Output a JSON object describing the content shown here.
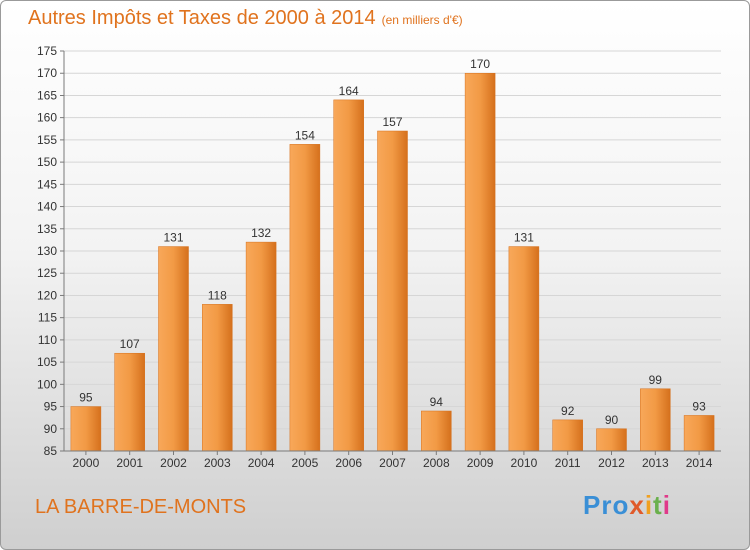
{
  "header": {
    "title": "Autres Impôts et Taxes de 2000 à 2014",
    "subtitle": "(en milliers d'€)"
  },
  "footer": {
    "place": "LA BARRE-DE-MONTS",
    "logo_parts": [
      "Pro",
      "x",
      "i",
      "t",
      "i"
    ]
  },
  "colors": {
    "bar_light": "#f8a85a",
    "bar_dark": "#d5701c",
    "accent": "#e0731e",
    "grid": "#d6d6d6",
    "axis": "#7a7a7a",
    "text": "#333333"
  },
  "chart_data": {
    "type": "bar",
    "title": "Autres Impôts et Taxes de 2000 à 2014",
    "subtitle": "(en milliers d'€)",
    "categories": [
      "2000",
      "2001",
      "2002",
      "2003",
      "2004",
      "2005",
      "2006",
      "2007",
      "2008",
      "2009",
      "2010",
      "2011",
      "2012",
      "2013",
      "2014"
    ],
    "values": [
      95,
      107,
      131,
      118,
      132,
      154,
      164,
      157,
      94,
      170,
      131,
      92,
      90,
      99,
      93
    ],
    "ylim": [
      85,
      175
    ],
    "yticks": [
      85,
      90,
      95,
      100,
      105,
      110,
      115,
      120,
      125,
      130,
      135,
      140,
      145,
      150,
      155,
      160,
      165,
      170,
      175
    ],
    "grid": true,
    "legend": "none"
  }
}
